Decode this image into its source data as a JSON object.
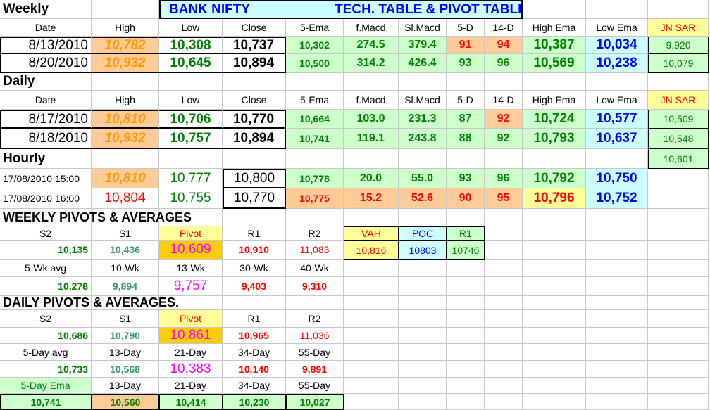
{
  "colors": {
    "header_cyan": "#ccffff",
    "light_green": "#ccffcc",
    "orange": "#ffcc99",
    "yellow": "#ffff99",
    "pivot_orange": "#ffcc00",
    "light_blue": "#ccffff",
    "text_green": "#008000",
    "text_blue": "#0000ff",
    "text_red": "#ff0000",
    "text_orange": "#ff9900",
    "text_magenta": "#ff00ff",
    "text_teal": "#339966"
  },
  "title": {
    "left": "BANK   NIFTY",
    "right": "TECH.  TABLE   &  PIVOT TABLE"
  },
  "weekly": {
    "label": "Weekly",
    "headers": [
      "Date",
      "High",
      "Low",
      "Close",
      "5-Ema",
      "f.Macd",
      "Sl.Macd",
      "5-D",
      "14-D",
      "High Ema",
      "Low Ema",
      "JN SAR"
    ],
    "rows": [
      [
        "8/13/2010",
        "10,782",
        "10,308",
        "10,737",
        "10,302",
        "274.5",
        "379.4",
        "91",
        "94",
        "10,387",
        "10,034",
        "9,920"
      ],
      [
        "8/20/2010",
        "10,932",
        "10,645",
        "10,894",
        "10,500",
        "314.2",
        "426.4",
        "93",
        "96",
        "10,569",
        "10,238",
        "10,079"
      ]
    ]
  },
  "daily": {
    "label": "Daily",
    "headers": [
      "Date",
      "High",
      "Low",
      "Close",
      "5-Ema",
      "f.Macd",
      "Sl.Macd",
      "5-D",
      "14-D",
      "High Ema",
      "Low Ema",
      "JN SAR"
    ],
    "rows": [
      [
        "8/17/2010",
        "10,810",
        "10,706",
        "10,770",
        "10,664",
        "103.0",
        "231.3",
        "87",
        "92",
        "10,724",
        "10,577",
        "10,509"
      ],
      [
        "8/18/2010",
        "10,932",
        "10,757",
        "10,894",
        "10,741",
        "119.1",
        "243.8",
        "88",
        "92",
        "10,793",
        "10,637",
        "10,548"
      ]
    ],
    "extra_sar": "10,601"
  },
  "hourly": {
    "label": "Hourly",
    "rows": [
      [
        "17/08/2010 15:00",
        "10,810",
        "10,777",
        "10,800",
        "10,778",
        "20.0",
        "55.0",
        "93",
        "96",
        "10,792",
        "10,750"
      ],
      [
        "17/08/2010 16:00",
        "10,804",
        "10,755",
        "10,770",
        "10,775",
        "15.2",
        "52.6",
        "90",
        "95",
        "10,796",
        "10,752"
      ]
    ]
  },
  "weekly_pivots": {
    "label": "WEEKLY  PIVOTS  &  AVERAGES",
    "headers": [
      "S2",
      "S1",
      "Pivot",
      "R1",
      "R2"
    ],
    "values": [
      "10,135",
      "10,436",
      "10,609",
      "10,910",
      "11,083"
    ],
    "vp_headers": [
      "VAH",
      "POC",
      "R1"
    ],
    "vp_values": [
      "10,816",
      "10803",
      "10746"
    ],
    "avg_headers": [
      "5-Wk avg",
      "10-Wk",
      "13-Wk",
      "30-Wk",
      "40-Wk"
    ],
    "avg_values": [
      "10,278",
      "9,894",
      "9,757",
      "9,403",
      "9,310"
    ]
  },
  "daily_pivots": {
    "label": "DAILY  PIVOTS  &  AVERAGES.",
    "headers": [
      "S2",
      "S1",
      "Pivot",
      "R1",
      "R2"
    ],
    "values": [
      "10,686",
      "10,790",
      "10,861",
      "10,965",
      "11,036"
    ],
    "avg_headers": [
      "5-Day avg",
      "13-Day",
      "21-Day",
      "34-Day",
      "55-Day"
    ],
    "avg_values": [
      "10,733",
      "10,568",
      "10,383",
      "10,140",
      "9,891"
    ],
    "ema_headers": [
      "5-Day Ema",
      "13-Day",
      "21-Day",
      "34-Day",
      "55-Day"
    ],
    "ema_values": [
      "10,741",
      "10,560",
      "10,414",
      "10,230",
      "10,027"
    ]
  }
}
